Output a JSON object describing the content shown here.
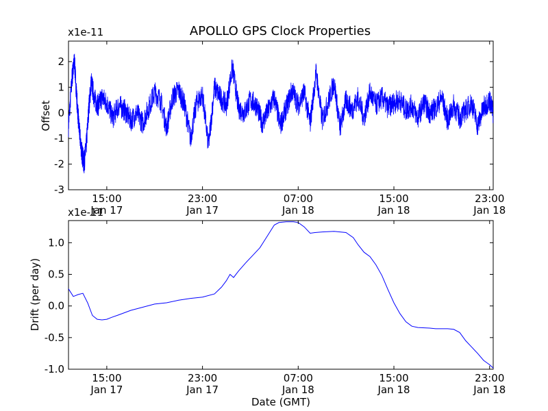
{
  "chart_data": [
    {
      "type": "line",
      "title": "APOLLO GPS Clock Properties",
      "xlabel": "",
      "ylabel": "Offset",
      "y_offset_text": "x1e-11",
      "ylim": [
        -3,
        2.8
      ],
      "y_ticks": [
        -3,
        -2,
        -1,
        0,
        1,
        2
      ],
      "y_tick_labels": [
        "-3",
        "-2",
        "-1",
        "0",
        "1",
        "2"
      ],
      "x_ticks": [
        {
          "hour": 15,
          "label1": "15:00",
          "label2": "Jan 17"
        },
        {
          "hour": 23,
          "label1": "23:00",
          "label2": "Jan 17"
        },
        {
          "hour": 31,
          "label1": "07:00",
          "label2": "Jan 18"
        },
        {
          "hour": 39,
          "label1": "15:00",
          "label2": "Jan 18"
        },
        {
          "hour": 47,
          "label1": "23:00",
          "label2": "Jan 18"
        }
      ],
      "xlim_hours_from_jan17_0000": [
        11.8,
        47.3
      ],
      "grid": false,
      "color": "#0000ff",
      "series": [
        {
          "x_hours": [
            11.8,
            12.1,
            12.3,
            12.5,
            12.7,
            12.9,
            13.1,
            13.3,
            13.5,
            13.7,
            14,
            14.3,
            14.6,
            15,
            15.5,
            16,
            16.5,
            17,
            17.5,
            18,
            18.5,
            19,
            19.5,
            20,
            20.5,
            21,
            21.5,
            22,
            22.5,
            23,
            23.5,
            24,
            24.5,
            25,
            25.5,
            26,
            26.5,
            27,
            27.5,
            28,
            28.5,
            29,
            29.5,
            30,
            30.5,
            31,
            31.5,
            32,
            32.5,
            33,
            33.5,
            34,
            34.5,
            35,
            35.5,
            36,
            36.5,
            37,
            37.5,
            38,
            38.5,
            39,
            39.5,
            40,
            40.5,
            41,
            41.5,
            42,
            42.5,
            43,
            43.5,
            44,
            44.5,
            45,
            45.5,
            46,
            46.5,
            47,
            47.3
          ],
          "y": [
            -0.5,
            1.4,
            2.0,
            0.5,
            -0.7,
            -1.5,
            -2.0,
            -1.2,
            0.2,
            1.2,
            0.5,
            0.3,
            0.6,
            0.4,
            -0.2,
            0.3,
            0.1,
            -0.3,
            0.0,
            -0.4,
            0.2,
            0.8,
            0.5,
            -0.6,
            0.6,
            0.9,
            0.3,
            -1.0,
            0.4,
            0.7,
            -1.3,
            1.0,
            0.6,
            0.3,
            1.8,
            0.2,
            0.0,
            0.5,
            0.3,
            -0.4,
            0.1,
            0.6,
            -0.5,
            0.2,
            0.9,
            0.3,
            0.8,
            -0.4,
            1.6,
            -0.3,
            0.4,
            1.2,
            -0.6,
            0.5,
            0.1,
            0.6,
            -0.2,
            0.8,
            0.3,
            0.6,
            0.2,
            0.4,
            0.5,
            0.1,
            0.3,
            -0.2,
            0.4,
            0.0,
            0.2,
            0.6,
            -0.3,
            0.3,
            -0.2,
            0.1,
            0.4,
            -0.5,
            0.2,
            0.5,
            0.0
          ]
        }
      ]
    },
    {
      "type": "line",
      "title": "",
      "xlabel": "Date (GMT)",
      "ylabel": "Drift (per day)",
      "y_offset_text": "x1e-11",
      "ylim": [
        -1.0,
        1.35
      ],
      "y_ticks": [
        -1.0,
        -0.5,
        0.0,
        0.5,
        1.0
      ],
      "y_tick_labels": [
        "-1.0",
        "-0.5",
        "0.0",
        "0.5",
        "1.0"
      ],
      "x_ticks": [
        {
          "hour": 15,
          "label1": "15:00",
          "label2": "Jan 17"
        },
        {
          "hour": 23,
          "label1": "23:00",
          "label2": "Jan 17"
        },
        {
          "hour": 31,
          "label1": "07:00",
          "label2": "Jan 18"
        },
        {
          "hour": 39,
          "label1": "15:00",
          "label2": "Jan 18"
        },
        {
          "hour": 47,
          "label1": "23:00",
          "label2": "Jan 18"
        }
      ],
      "xlim_hours_from_jan17_0000": [
        11.8,
        47.3
      ],
      "grid": false,
      "color": "#0000ff",
      "series": [
        {
          "x_hours": [
            11.8,
            12.2,
            12.6,
            13.0,
            13.4,
            13.8,
            14.2,
            14.6,
            15.0,
            15.4,
            16,
            17,
            18,
            19,
            20,
            21,
            22,
            23,
            24,
            24.6,
            25,
            25.3,
            25.6,
            26,
            26.6,
            27.2,
            27.8,
            28.4,
            29,
            29.4,
            30,
            30.6,
            31,
            31.5,
            32,
            32.4,
            33,
            34,
            35,
            35.6,
            36,
            36.5,
            37,
            37.5,
            38,
            38.5,
            39,
            39.5,
            40,
            40.5,
            41,
            42,
            42.5,
            43,
            43.5,
            44,
            44.5,
            45,
            45.5,
            46,
            46.5,
            47,
            47.3
          ],
          "y": [
            0.27,
            0.15,
            0.18,
            0.2,
            0.05,
            -0.15,
            -0.21,
            -0.22,
            -0.21,
            -0.18,
            -0.14,
            -0.07,
            -0.02,
            0.03,
            0.05,
            0.09,
            0.12,
            0.14,
            0.19,
            0.3,
            0.4,
            0.5,
            0.45,
            0.55,
            0.68,
            0.8,
            0.92,
            1.1,
            1.28,
            1.32,
            1.33,
            1.33,
            1.32,
            1.25,
            1.15,
            1.16,
            1.17,
            1.18,
            1.16,
            1.08,
            0.97,
            0.85,
            0.78,
            0.65,
            0.48,
            0.26,
            0.05,
            -0.12,
            -0.25,
            -0.32,
            -0.34,
            -0.35,
            -0.36,
            -0.36,
            -0.36,
            -0.37,
            -0.42,
            -0.55,
            -0.65,
            -0.75,
            -0.86,
            -0.93,
            -0.98
          ]
        }
      ]
    }
  ]
}
